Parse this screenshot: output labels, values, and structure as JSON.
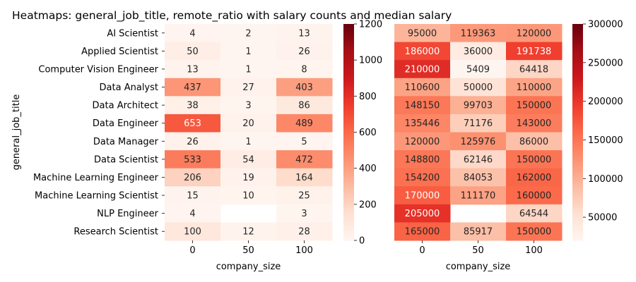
{
  "title": "Heatmaps: general_job_title, remote_ratio with salary counts and median salary",
  "chart_data": [
    {
      "type": "heatmap",
      "ylabel": "general_job_title",
      "xlabel": "company_size",
      "x": [
        "0",
        "50",
        "100"
      ],
      "y": [
        "AI Scientist",
        "Applied Scientist",
        "Computer Vision Engineer",
        "Data Analyst",
        "Data Architect",
        "Data Engineer",
        "Data Manager",
        "Data Scientist",
        "Machine Learning Engineer",
        "Machine Learning Scientist",
        "NLP Engineer",
        "Research Scientist"
      ],
      "values": [
        [
          4,
          2,
          13
        ],
        [
          50,
          1,
          26
        ],
        [
          13,
          1,
          8
        ],
        [
          437,
          27,
          403
        ],
        [
          38,
          3,
          86
        ],
        [
          653,
          20,
          489
        ],
        [
          26,
          1,
          5
        ],
        [
          533,
          54,
          472
        ],
        [
          206,
          19,
          164
        ],
        [
          15,
          10,
          25
        ],
        [
          4,
          null,
          3
        ],
        [
          100,
          12,
          28
        ]
      ],
      "colorbar": {
        "min": 0,
        "max": 1200,
        "ticks": [
          0,
          200,
          400,
          600,
          800,
          1000,
          1200
        ]
      },
      "colormap": "Reds"
    },
    {
      "type": "heatmap",
      "xlabel": "company_size",
      "x": [
        "0",
        "50",
        "100"
      ],
      "values": [
        [
          95000,
          119363,
          120000
        ],
        [
          186000,
          36000,
          191738
        ],
        [
          210000,
          5409,
          64418
        ],
        [
          110600,
          50000,
          110000
        ],
        [
          148150,
          99703,
          150000
        ],
        [
          135446,
          71176,
          143000
        ],
        [
          120000,
          125976,
          86000
        ],
        [
          148800,
          62146,
          150000
        ],
        [
          154200,
          84053,
          162000
        ],
        [
          170000,
          111170,
          160000
        ],
        [
          205000,
          null,
          64544
        ],
        [
          165000,
          85917,
          150000
        ]
      ],
      "colorbar": {
        "min": 20000,
        "max": 300000,
        "ticks": [
          50000,
          100000,
          150000,
          200000,
          250000,
          300000
        ]
      },
      "colormap": "Reds"
    }
  ]
}
